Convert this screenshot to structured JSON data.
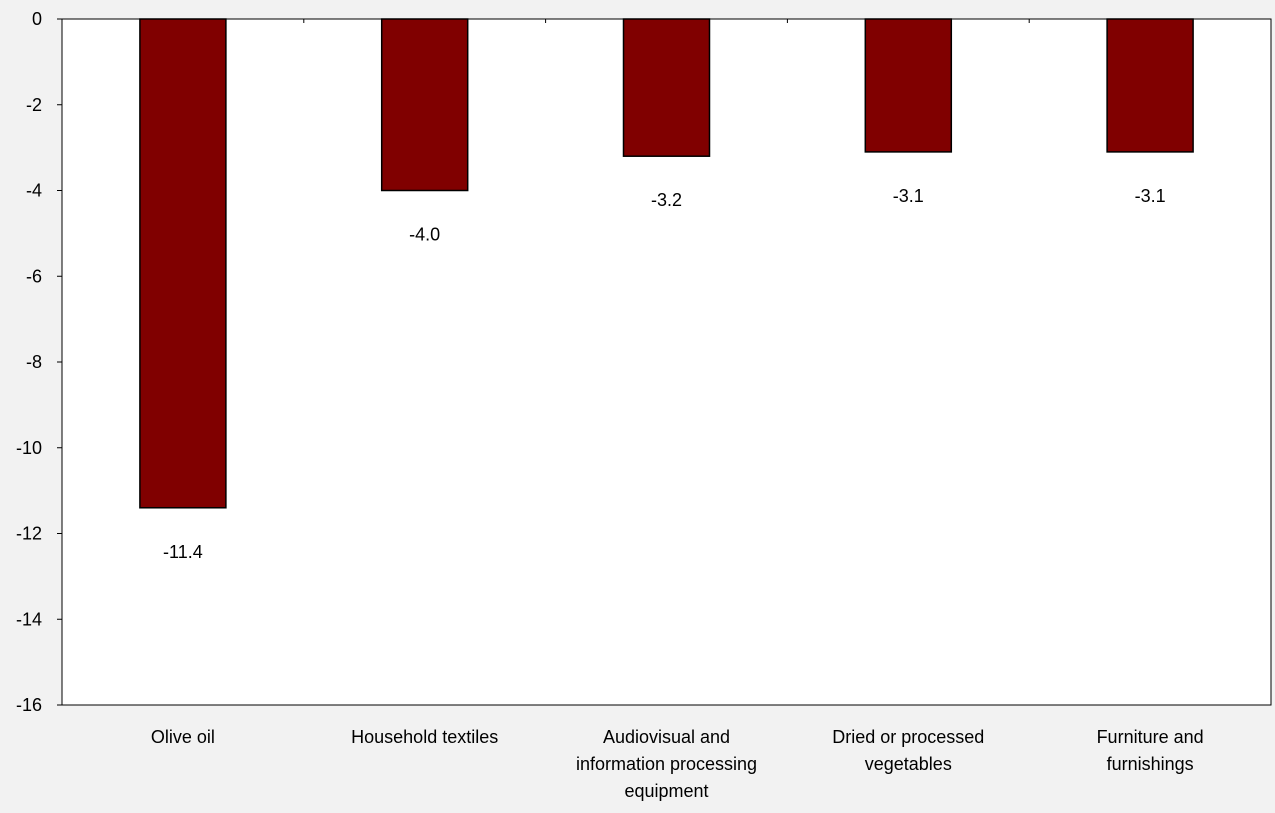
{
  "chart_data": {
    "type": "bar",
    "title": "",
    "xlabel": "",
    "ylabel": "",
    "categories": [
      [
        "Olive oil"
      ],
      [
        "Household textiles"
      ],
      [
        "Audiovisual and",
        "information processing",
        "equipment"
      ],
      [
        "Dried or processed",
        "vegetables"
      ],
      [
        "Furniture and",
        "furnishings"
      ]
    ],
    "values": [
      -11.4,
      -4.0,
      -3.2,
      -3.1,
      -3.1
    ],
    "data_labels": [
      "-11.4",
      "-4.0",
      "-3.2",
      "-3.1",
      "-3.1"
    ],
    "ylim": [
      -16,
      0
    ],
    "yticks": [
      0,
      -2,
      -4,
      -6,
      -8,
      -10,
      -12,
      -14,
      -16
    ],
    "grid": false,
    "legend": "none",
    "colors": {
      "bar": "#800000",
      "bar_outline": "#000000",
      "plot_background": "#ffffff",
      "page_background": "#f2f2f2"
    }
  }
}
